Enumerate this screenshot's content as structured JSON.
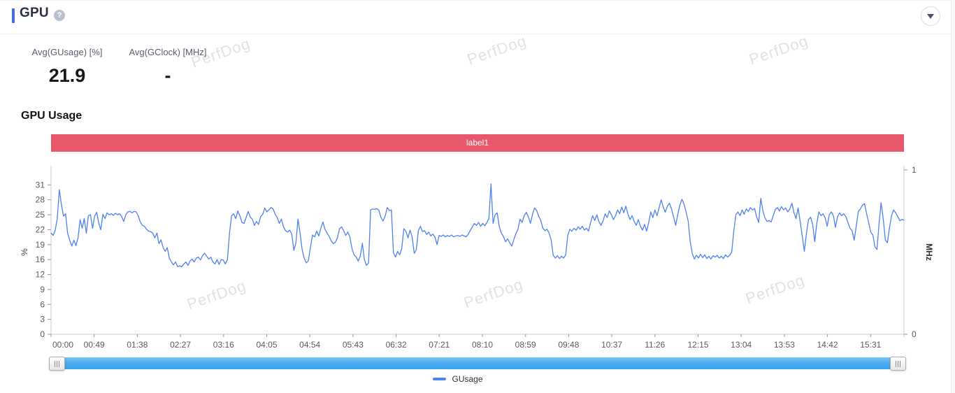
{
  "header": {
    "title": "GPU",
    "help_glyph": "?",
    "collapse_icon": "chevron-down"
  },
  "stats": [
    {
      "label": "Avg(GUsage) [%]",
      "value": "21.9"
    },
    {
      "label": "Avg(GClock) [MHz]",
      "value": "-"
    }
  ],
  "section_title": "GPU Usage",
  "banner": {
    "label": "label1",
    "color": "#e8576c"
  },
  "watermark": {
    "text": "PerfDog"
  },
  "legend": [
    {
      "label": "GUsage",
      "color": "#4e83ee"
    }
  ],
  "colors": {
    "accent_blue": "#3a6ee8",
    "line_blue": "#4e83ee",
    "scrollbar_blue": "#47a9f1",
    "banner_red": "#e8576c",
    "axis_line": "#cccccc",
    "tick_label": "#5c5c5c"
  },
  "chart_data": {
    "type": "line",
    "title": "GPU Usage",
    "legend_position": "bottom",
    "grid": false,
    "x_tick_labels": [
      "00:00",
      "00:49",
      "01:38",
      "02:27",
      "03:16",
      "04:05",
      "04:54",
      "05:43",
      "06:32",
      "07:21",
      "08:10",
      "08:59",
      "09:48",
      "10:37",
      "11:26",
      "12:15",
      "13:04",
      "13:53",
      "14:42",
      "15:31"
    ],
    "x_tick_interval_seconds": 49,
    "y_left": {
      "label": "%",
      "tick_labels": [
        "0",
        "3",
        "6",
        "9",
        "12",
        "16",
        "19",
        "22",
        "25",
        "28",
        "31"
      ],
      "axis_max": 34.1
    },
    "y_right": {
      "label": "MHz",
      "tick_labels": [
        "0",
        "1"
      ],
      "axis_max": 1
    },
    "series": [
      {
        "name": "GUsage",
        "color": "#4e83ee",
        "unit": "%",
        "values": [
          21,
          20.5,
          21.5,
          24,
          30,
          27,
          24.5,
          25,
          21,
          19.5,
          18.3,
          19.5,
          18.4,
          20,
          23.8,
          22,
          24,
          21,
          24.6,
          24.8,
          22,
          24.5,
          25.3,
          23,
          21.7,
          24.9,
          24,
          25.2,
          24.8,
          25,
          24.7,
          25.1,
          24.8,
          25,
          24.5,
          23.4,
          24.8,
          25.4,
          25.5,
          25.2,
          25.5,
          25.4,
          24.6,
          23.3,
          22.6,
          22.4,
          21.8,
          21.4,
          21.3,
          21,
          20,
          21,
          18.8,
          19.6,
          18,
          17.2,
          18,
          15.8,
          15,
          14.4,
          15,
          14,
          14.2,
          14,
          14.6,
          15,
          14.3,
          15.2,
          15.6,
          15,
          15.8,
          16,
          15.4,
          16.3,
          16.8,
          16.2,
          15.6,
          16,
          15,
          14.6,
          15.5,
          14.5,
          15.5,
          15.4,
          14.6,
          15.5,
          21,
          24.6,
          25,
          24,
          25.6,
          24.6,
          23.2,
          23,
          24.2,
          25.5,
          24.3,
          23.9,
          22.6,
          23.4,
          22.8,
          24.4,
          24.9,
          26.2,
          25.4,
          25.8,
          26.3,
          26,
          24.9,
          24.2,
          23,
          23.9,
          22.3,
          21.5,
          21.2,
          21.6,
          20.8,
          17.4,
          19,
          23.9,
          21,
          17.5,
          15.8,
          14.8,
          15.3,
          18,
          20.6,
          20.2,
          21.4,
          20.4,
          22,
          23.3,
          21.8,
          21,
          20.3,
          19.4,
          18.8,
          19.1,
          20,
          21.9,
          22.3,
          21.5,
          20.5,
          21.2,
          20.2,
          17.8,
          16.5,
          16,
          15.2,
          16.2,
          18.9,
          15.5,
          14.3,
          14.8,
          25.8,
          26,
          25.9,
          26.1,
          25.7,
          24.2,
          23.5,
          24.5,
          26.3,
          25.7,
          25.8,
          16.9,
          16,
          17.2,
          16.5,
          17.8,
          21.9,
          21.4,
          20,
          21.6,
          20.2,
          16.8,
          17.5,
          21.5,
          22.4,
          21.3,
          21.5,
          20.7,
          21.2,
          20.4,
          20.8,
          20.2,
          18.6,
          20.5,
          20.3,
          20.6,
          20.2,
          20.5,
          20.3,
          20.6,
          20.2,
          20.4,
          20.5,
          20.3,
          20.6,
          20.4,
          20.2,
          20.7,
          21.5,
          22.3,
          23,
          22.6,
          23.2,
          22.4,
          23,
          22.5,
          23.2,
          24,
          31.2,
          23,
          24.8,
          25.2,
          22.3,
          21,
          20.3,
          19.2,
          19.8,
          19,
          18.3,
          19.6,
          20.9,
          21.8,
          23.9,
          23.2,
          24.6,
          25.3,
          24.4,
          23,
          24.9,
          26.2,
          25.7,
          24.5,
          23.6,
          22,
          21.5,
          21.8,
          21,
          19.5,
          16.4,
          15.8,
          16.3,
          15.7,
          16.2,
          15.8,
          16.5,
          20.5,
          21.8,
          21.4,
          22,
          21.6,
          22.3,
          21.8,
          22.4,
          21.6,
          22,
          21.4,
          23.2,
          24.6,
          23.6,
          24.8,
          23.4,
          22.6,
          23.5,
          25,
          24.2,
          25.6,
          24.8,
          23.8,
          24.6,
          25.8,
          25,
          26.4,
          25.2,
          26.6,
          24.9,
          23.8,
          24.6,
          23.4,
          22.6,
          23.8,
          22.4,
          21.6,
          22.8,
          21.4,
          23.2,
          25.4,
          24.2,
          25.8,
          24.6,
          26.2,
          27.9,
          26.4,
          25.3,
          26.6,
          27.2,
          26,
          24.3,
          22.6,
          24.8,
          26.8,
          28,
          27,
          25.4,
          23.5,
          19.2,
          16.8,
          15.6,
          16.4,
          15.8,
          16.6,
          15.9,
          16.5,
          15.7,
          16.2,
          15.6,
          16.3,
          16,
          16.4,
          15.8,
          16.2,
          15.7,
          16.5,
          16,
          16.4,
          17,
          21.5,
          24.8,
          25.4,
          24.6,
          25.8,
          24.9,
          26,
          25.5,
          26.3,
          25.8,
          26.1,
          24.4,
          23.2,
          28.2,
          25.6,
          24.2,
          23.4,
          23.6,
          23.3,
          24.6,
          25.9,
          26.3,
          25.6,
          26.5,
          25.8,
          26.2,
          25.4,
          26,
          27.2,
          25.2,
          24,
          26.2,
          23.3,
          20.4,
          17.2,
          21,
          23.8,
          24.3,
          22.8,
          19.2,
          23,
          25.4,
          24.6,
          25,
          24.2,
          22.4,
          24.8,
          25.4,
          24.6,
          22.2,
          24.4,
          25.2,
          24.6,
          25,
          24.4,
          23.2,
          22,
          21.5,
          19.5,
          22.4,
          25.5,
          26,
          26.8,
          27.1,
          25,
          23.2,
          21.2,
          20.6,
          18.2,
          17.6,
          23,
          27.3,
          24,
          19.6,
          19,
          22,
          24.6,
          25.8,
          25.2,
          24.4,
          23.6,
          23.8,
          23.7
        ]
      }
    ]
  }
}
